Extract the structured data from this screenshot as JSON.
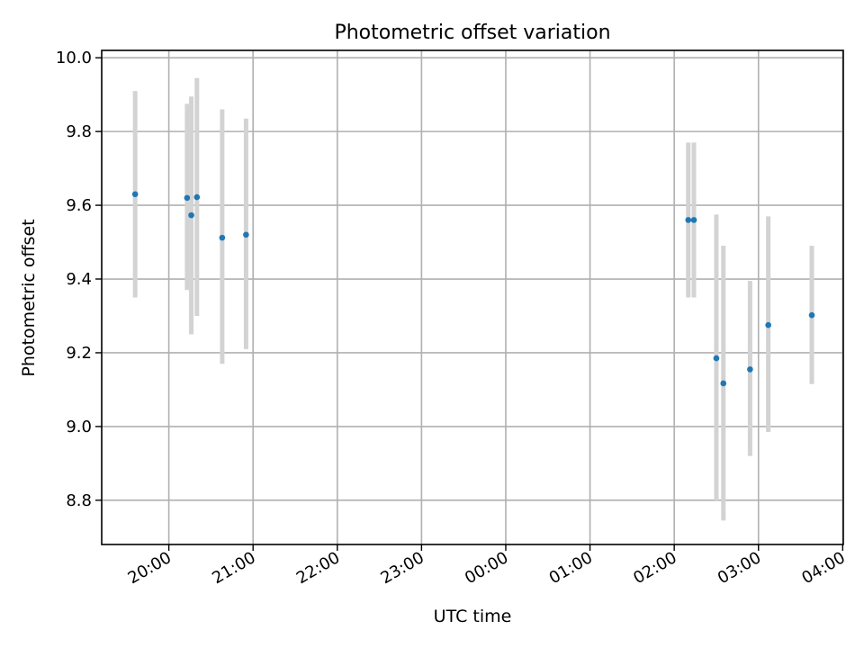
{
  "chart_data": {
    "type": "scatter",
    "title": "Photometric offset variation",
    "xlabel": "UTC time",
    "ylabel": "Photometric offset",
    "x_unit": "hours since 19:00 UTC",
    "xlim": [
      0.203,
      9.007
    ],
    "ylim": [
      8.68,
      10.02
    ],
    "grid": true,
    "x_ticks": [
      {
        "pos": 1,
        "label": "20:00"
      },
      {
        "pos": 2,
        "label": "21:00"
      },
      {
        "pos": 3,
        "label": "22:00"
      },
      {
        "pos": 4,
        "label": "23:00"
      },
      {
        "pos": 5,
        "label": "00:00"
      },
      {
        "pos": 6,
        "label": "01:00"
      },
      {
        "pos": 7,
        "label": "02:00"
      },
      {
        "pos": 8,
        "label": "03:00"
      },
      {
        "pos": 9,
        "label": "04:00"
      }
    ],
    "y_ticks": [
      {
        "value": 8.8,
        "label": "8.8"
      },
      {
        "value": 9.0,
        "label": "9.0"
      },
      {
        "value": 9.2,
        "label": "9.2"
      },
      {
        "value": 9.4,
        "label": "9.4"
      },
      {
        "value": 9.6,
        "label": "9.6"
      },
      {
        "value": 9.8,
        "label": "9.8"
      },
      {
        "value": 10.0,
        "label": "10.0"
      }
    ],
    "series": [
      {
        "name": "offset",
        "color": "#1f77b4",
        "errorbar_color": "#d3d3d3",
        "points": [
          {
            "time": "19:36",
            "y": 9.63,
            "yerr_low": 9.35,
            "yerr_high": 9.91
          },
          {
            "time": "20:13",
            "y": 9.62,
            "yerr_low": 9.37,
            "yerr_high": 9.875
          },
          {
            "time": "20:16",
            "y": 9.573,
            "yerr_low": 9.25,
            "yerr_high": 9.895
          },
          {
            "time": "20:20",
            "y": 9.622,
            "yerr_low": 9.3,
            "yerr_high": 9.945
          },
          {
            "time": "20:38",
            "y": 9.512,
            "yerr_low": 9.17,
            "yerr_high": 9.86
          },
          {
            "time": "20:55",
            "y": 9.52,
            "yerr_low": 9.21,
            "yerr_high": 9.835
          },
          {
            "time": "02:10",
            "y": 9.56,
            "yerr_low": 9.35,
            "yerr_high": 9.77
          },
          {
            "time": "02:14",
            "y": 9.56,
            "yerr_low": 9.35,
            "yerr_high": 9.77
          },
          {
            "time": "02:30",
            "y": 9.185,
            "yerr_low": 8.8,
            "yerr_high": 9.575
          },
          {
            "time": "02:35",
            "y": 9.117,
            "yerr_low": 8.745,
            "yerr_high": 9.49
          },
          {
            "time": "02:54",
            "y": 9.155,
            "yerr_low": 8.92,
            "yerr_high": 9.395
          },
          {
            "time": "03:07",
            "y": 9.275,
            "yerr_low": 8.985,
            "yerr_high": 9.57
          },
          {
            "time": "03:38",
            "y": 9.302,
            "yerr_low": 9.115,
            "yerr_high": 9.49
          }
        ]
      }
    ]
  }
}
